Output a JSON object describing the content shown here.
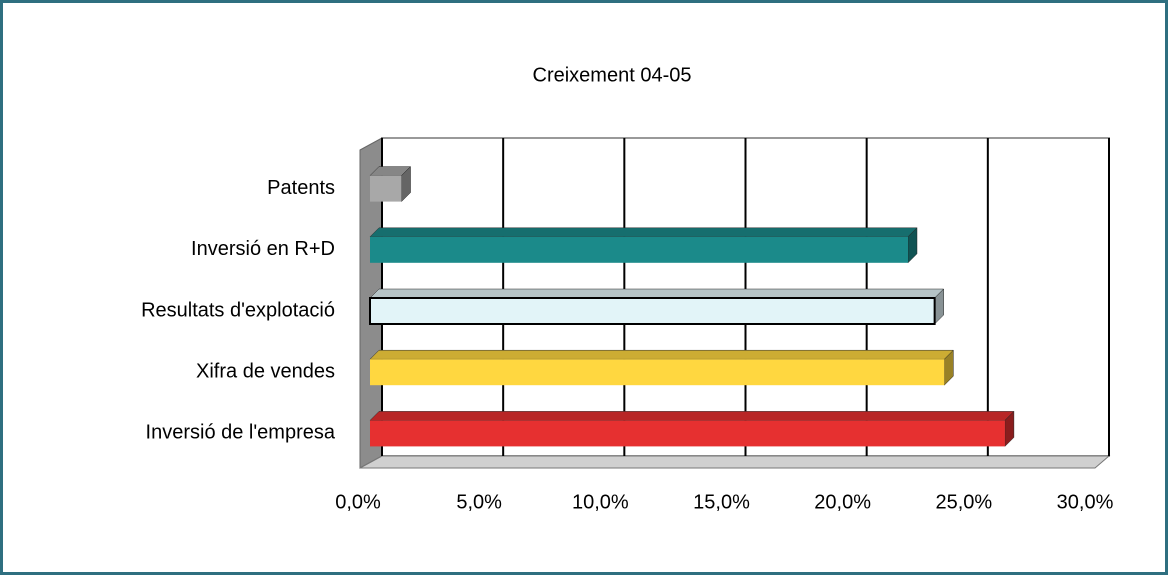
{
  "chart_data": {
    "type": "bar",
    "orientation": "horizontal",
    "title": "Creixement 04-05",
    "categories": [
      "Patents",
      "Inversió en R+D",
      "Resultats d'explotació",
      "Xifra de vendes",
      "Inversió de l'empresa"
    ],
    "values": [
      1.3,
      22.2,
      23.3,
      23.7,
      26.2
    ],
    "colors": [
      "#a8a8a8",
      "#1b8a8a",
      "#e2f4f8",
      "#ffd740",
      "#e63030"
    ],
    "xlim": [
      0,
      30
    ],
    "xticks": [
      {
        "value": 0,
        "label": "0,0%"
      },
      {
        "value": 5,
        "label": "5,0%"
      },
      {
        "value": 10,
        "label": "10,0%"
      },
      {
        "value": 15,
        "label": "15,0%"
      },
      {
        "value": 20,
        "label": "20,0%"
      },
      {
        "value": 25,
        "label": "25,0%"
      },
      {
        "value": 30,
        "label": "30,0%"
      }
    ],
    "grid": true
  }
}
